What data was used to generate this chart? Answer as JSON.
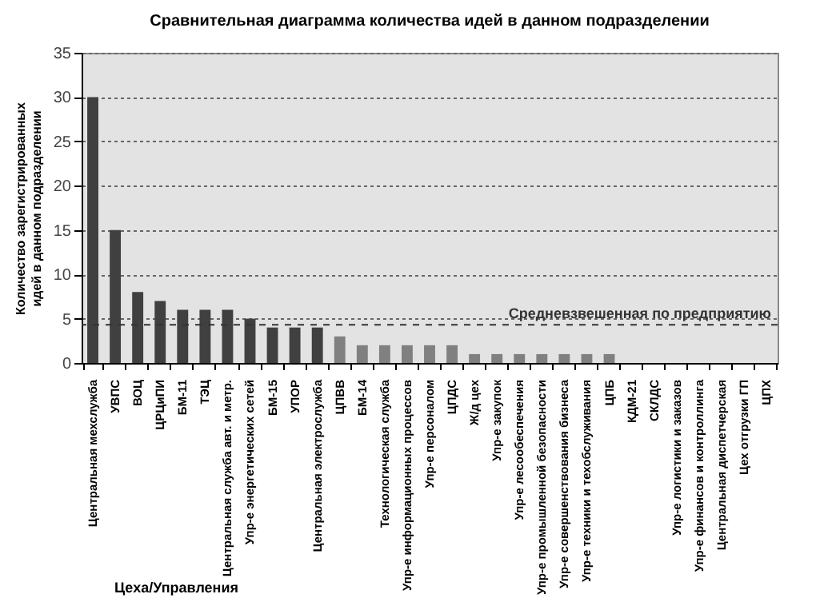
{
  "chart_data": {
    "type": "bar",
    "title": "Сравнительная диаграмма количества идей в данном подразделении",
    "xlabel": "Цеха/Управления",
    "ylabel": "Количество зарегистрированных идей в данном подразделении",
    "categories": [
      "Центральная мехслужба",
      "УВПС",
      "ВОЦ",
      "ЦРЦиПИ",
      "БМ-11",
      "ТЭЦ",
      "Центральная служба авт. и метр.",
      "Упр-е энергетических сетей",
      "БМ-15",
      "УПОР",
      "Центральная электрослужба",
      "ЦПВВ",
      "БМ-14",
      "Технологическая служба",
      "Упр-е информационных процессов",
      "Упр-е персоналом",
      "ЦПДС",
      "Ж/д цех",
      "Упр-е закупок",
      "Упр-е лесообеспечения",
      "Упр-е промышленной безопасности",
      "Упр-е совершенствования бизнеса",
      "Упр-е техники и техобслуживания",
      "ЦПБ",
      "КДМ-21",
      "СКЛДС",
      "Упр-е логистики и заказов",
      "Упр-е финансов и контроллинга",
      "Центральная диспетчерская",
      "Цех отгрузки ГП",
      "ЦПХ"
    ],
    "values": [
      30,
      15,
      8,
      7,
      6,
      6,
      6,
      5,
      4,
      4,
      4,
      3,
      2,
      2,
      2,
      2,
      2,
      1,
      1,
      1,
      1,
      1,
      1,
      1,
      0,
      0,
      0,
      0,
      0,
      0,
      0
    ],
    "colors": [
      "#404040",
      "#404040",
      "#404040",
      "#404040",
      "#404040",
      "#404040",
      "#404040",
      "#404040",
      "#404040",
      "#404040",
      "#404040",
      "#808080",
      "#808080",
      "#808080",
      "#808080",
      "#808080",
      "#808080",
      "#808080",
      "#808080",
      "#808080",
      "#808080",
      "#808080",
      "#808080",
      "#808080",
      "#808080",
      "#808080",
      "#808080",
      "#808080",
      "#808080",
      "#808080",
      "#808080"
    ],
    "ylim": [
      0,
      35
    ],
    "yticks": [
      0,
      5,
      10,
      15,
      20,
      25,
      30,
      35
    ],
    "grid": "y",
    "ref_lines": [
      {
        "axis": "y",
        "value": 4.3,
        "label": "Средневзвешенная по предприятию"
      }
    ]
  }
}
